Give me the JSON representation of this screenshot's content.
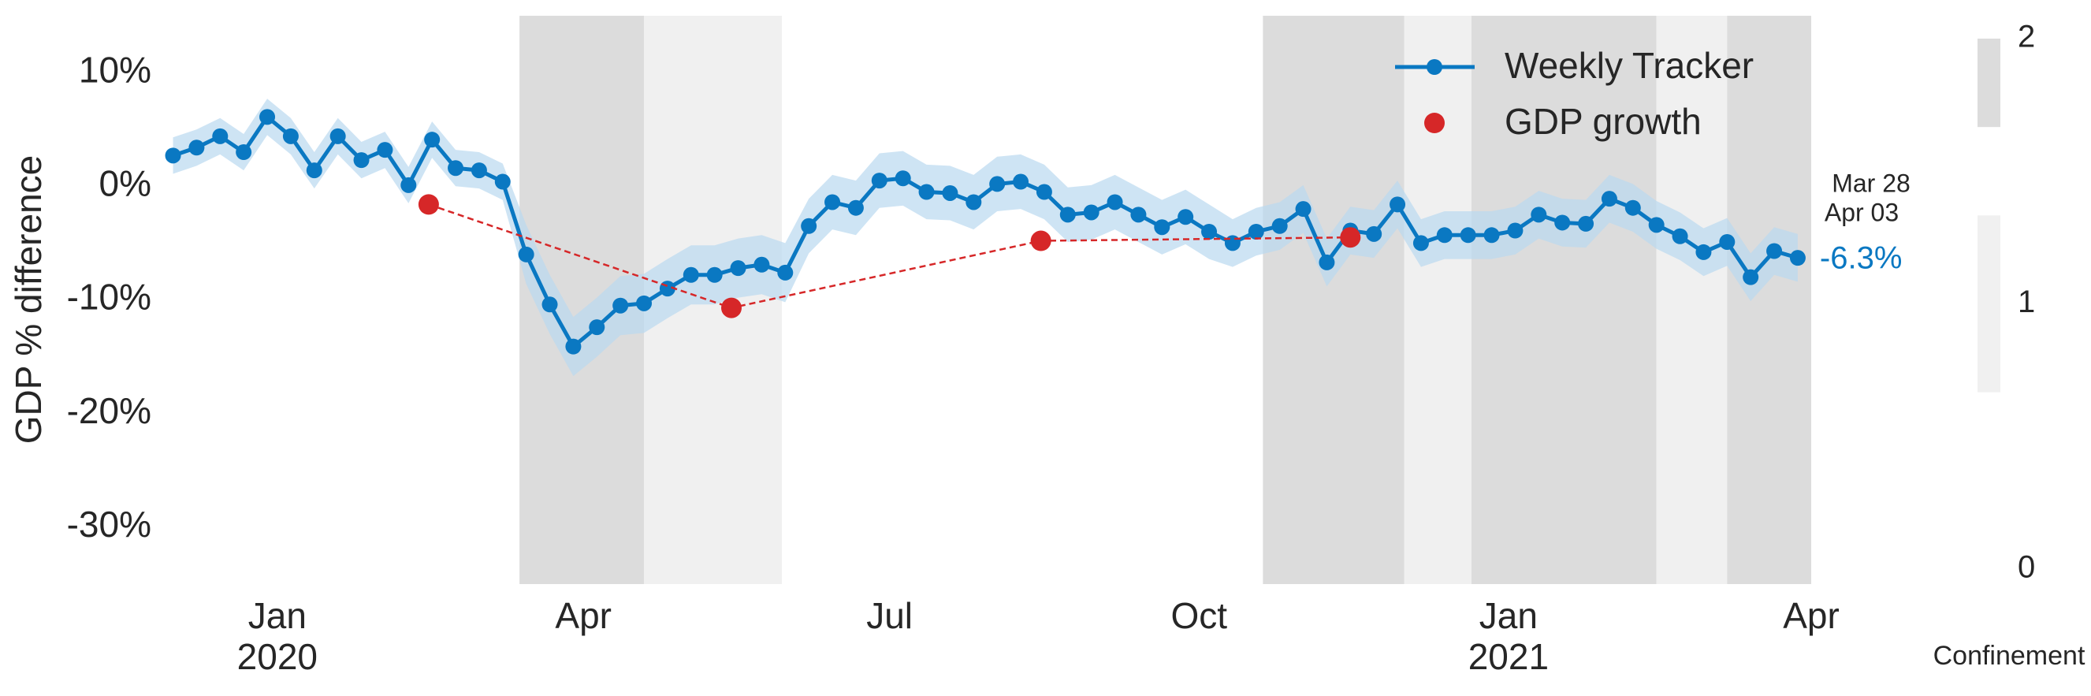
{
  "chart_data": {
    "type": "line",
    "y_label": "GDP % difference",
    "xlim": [
      "2019-11-29",
      "2021-04-01"
    ],
    "ylim": [
      -35,
      15
    ],
    "yticks": [
      {
        "value": 10,
        "label": "10%"
      },
      {
        "value": 0,
        "label": "0%"
      },
      {
        "value": -10,
        "label": "-10%"
      },
      {
        "value": -20,
        "label": "-20%"
      },
      {
        "value": -30,
        "label": "-30%"
      }
    ],
    "xticks": [
      {
        "value": "2020-01-01",
        "label": "Jan"
      },
      {
        "value": "2020-04-01",
        "label": "Apr"
      },
      {
        "value": "2020-07-01",
        "label": "Jul"
      },
      {
        "value": "2020-10-01",
        "label": "Oct"
      },
      {
        "value": "2021-01-01",
        "label": "Jan"
      },
      {
        "value": "2021-04-01",
        "label": "Apr"
      }
    ],
    "x_year_ticks": [
      {
        "value": "2020-01-01",
        "label": "2020"
      },
      {
        "value": "2021-01-01",
        "label": "2021"
      }
    ],
    "grid": false,
    "legend": "upper right",
    "series": [
      {
        "name": "Weekly Tracker",
        "color": "#0a78c2",
        "band_color": "#b9d9ef",
        "x": [
          "2019-12-01",
          "2019-12-08",
          "2019-12-15",
          "2019-12-22",
          "2019-12-29",
          "2020-01-05",
          "2020-01-12",
          "2020-01-19",
          "2020-01-26",
          "2020-02-02",
          "2020-02-09",
          "2020-02-16",
          "2020-02-23",
          "2020-03-01",
          "2020-03-08",
          "2020-03-15",
          "2020-03-22",
          "2020-03-29",
          "2020-04-05",
          "2020-04-12",
          "2020-04-19",
          "2020-04-26",
          "2020-05-03",
          "2020-05-10",
          "2020-05-17",
          "2020-05-24",
          "2020-05-31",
          "2020-06-07",
          "2020-06-14",
          "2020-06-21",
          "2020-06-28",
          "2020-07-05",
          "2020-07-12",
          "2020-07-19",
          "2020-07-26",
          "2020-08-02",
          "2020-08-09",
          "2020-08-16",
          "2020-08-23",
          "2020-08-30",
          "2020-09-06",
          "2020-09-13",
          "2020-09-20",
          "2020-09-27",
          "2020-10-04",
          "2020-10-11",
          "2020-10-18",
          "2020-10-25",
          "2020-11-01",
          "2020-11-08",
          "2020-11-15",
          "2020-11-22",
          "2020-11-29",
          "2020-12-06",
          "2020-12-13",
          "2020-12-20",
          "2020-12-27",
          "2021-01-03",
          "2021-01-10",
          "2021-01-17",
          "2021-01-24",
          "2021-01-31",
          "2021-02-07",
          "2021-02-14",
          "2021-02-21",
          "2021-02-28",
          "2021-03-07",
          "2021-03-14",
          "2021-03-21",
          "2021-03-28"
        ],
        "values": [
          2.7,
          3.4,
          4.4,
          3.0,
          6.1,
          4.4,
          1.4,
          4.4,
          2.3,
          3.2,
          0.1,
          4.1,
          1.6,
          1.4,
          0.4,
          -6.0,
          -10.4,
          -14.1,
          -12.4,
          -10.5,
          -10.3,
          -9.0,
          -7.8,
          -7.8,
          -7.2,
          -6.9,
          -7.6,
          -3.5,
          -1.4,
          -1.9,
          0.5,
          0.7,
          -0.5,
          -0.6,
          -1.4,
          0.2,
          0.4,
          -0.5,
          -2.5,
          -2.3,
          -1.4,
          -2.5,
          -3.6,
          -2.7,
          -4.0,
          -5.0,
          -4.0,
          -3.5,
          -2.0,
          -6.7,
          -3.9,
          -4.2,
          -1.6,
          -5.0,
          -4.3,
          -4.3,
          -4.3,
          -3.9,
          -2.5,
          -3.2,
          -3.3,
          -1.1,
          -1.9,
          -3.4,
          -4.4,
          -5.8,
          -4.9,
          -8.0,
          -5.7,
          -6.3
        ],
        "error": [
          1.6,
          1.6,
          1.6,
          1.6,
          1.6,
          1.6,
          1.6,
          1.6,
          1.6,
          1.6,
          1.6,
          1.6,
          1.6,
          1.6,
          1.6,
          2.6,
          2.6,
          2.6,
          2.6,
          2.6,
          2.6,
          2.6,
          2.6,
          2.6,
          2.6,
          2.6,
          2.6,
          2.4,
          2.4,
          2.4,
          2.4,
          2.4,
          2.4,
          2.4,
          2.4,
          2.4,
          2.4,
          2.4,
          2.4,
          2.4,
          2.4,
          2.4,
          2.4,
          2.4,
          2.4,
          2.1,
          2.1,
          2.1,
          2.1,
          2.1,
          2.1,
          2.1,
          2.1,
          2.1,
          2.1,
          2.1,
          2.1,
          2.1,
          2.1,
          2.1,
          2.1,
          2.1,
          2.1,
          2.1,
          2.1,
          2.1,
          2.1,
          2.1,
          2.1,
          2.1
        ],
        "value_labels": [
          null,
          null,
          null,
          null,
          null,
          null,
          null,
          null,
          null,
          null,
          null,
          null,
          null,
          null,
          null,
          null,
          null,
          null,
          null,
          null,
          null,
          null,
          null,
          null,
          null,
          null,
          null,
          null,
          null,
          null,
          null,
          null,
          null,
          null,
          null,
          null,
          null,
          null,
          null,
          null,
          null,
          null,
          null,
          null,
          null,
          null,
          null,
          null,
          null,
          null,
          null,
          null,
          null,
          null,
          null,
          null,
          null,
          null,
          null,
          null,
          null,
          null,
          null,
          null,
          null,
          null,
          null,
          null,
          null,
          "-6.3%"
        ]
      },
      {
        "name": "GDP growth",
        "color": "#d62728",
        "x": [
          "2020-02-15",
          "2020-05-15",
          "2020-08-15",
          "2020-11-15"
        ],
        "values": [
          -1.6,
          -10.7,
          -4.8,
          -4.5
        ]
      }
    ],
    "annotations": [
      "Mar 28",
      "Apr 03"
    ],
    "confinement": {
      "label": "Confinement",
      "lim": [
        0,
        2
      ],
      "ticks": [
        0,
        1,
        2
      ],
      "levels": [
        {
          "level": 1,
          "color": "#f0f0f0"
        },
        {
          "level": 2,
          "color": "#dcdcdc"
        }
      ],
      "spans": [
        {
          "start": "2020-03-13",
          "end": "2020-04-19",
          "level": 2
        },
        {
          "start": "2020-04-19",
          "end": "2020-05-30",
          "level": 1
        },
        {
          "start": "2020-10-20",
          "end": "2020-12-01",
          "level": 2
        },
        {
          "start": "2020-12-01",
          "end": "2020-12-21",
          "level": 1
        },
        {
          "start": "2020-12-21",
          "end": "2021-02-14",
          "level": 2
        },
        {
          "start": "2021-02-14",
          "end": "2021-03-07",
          "level": 1
        },
        {
          "start": "2021-03-07",
          "end": "2021-04-01",
          "level": 2
        }
      ]
    }
  }
}
